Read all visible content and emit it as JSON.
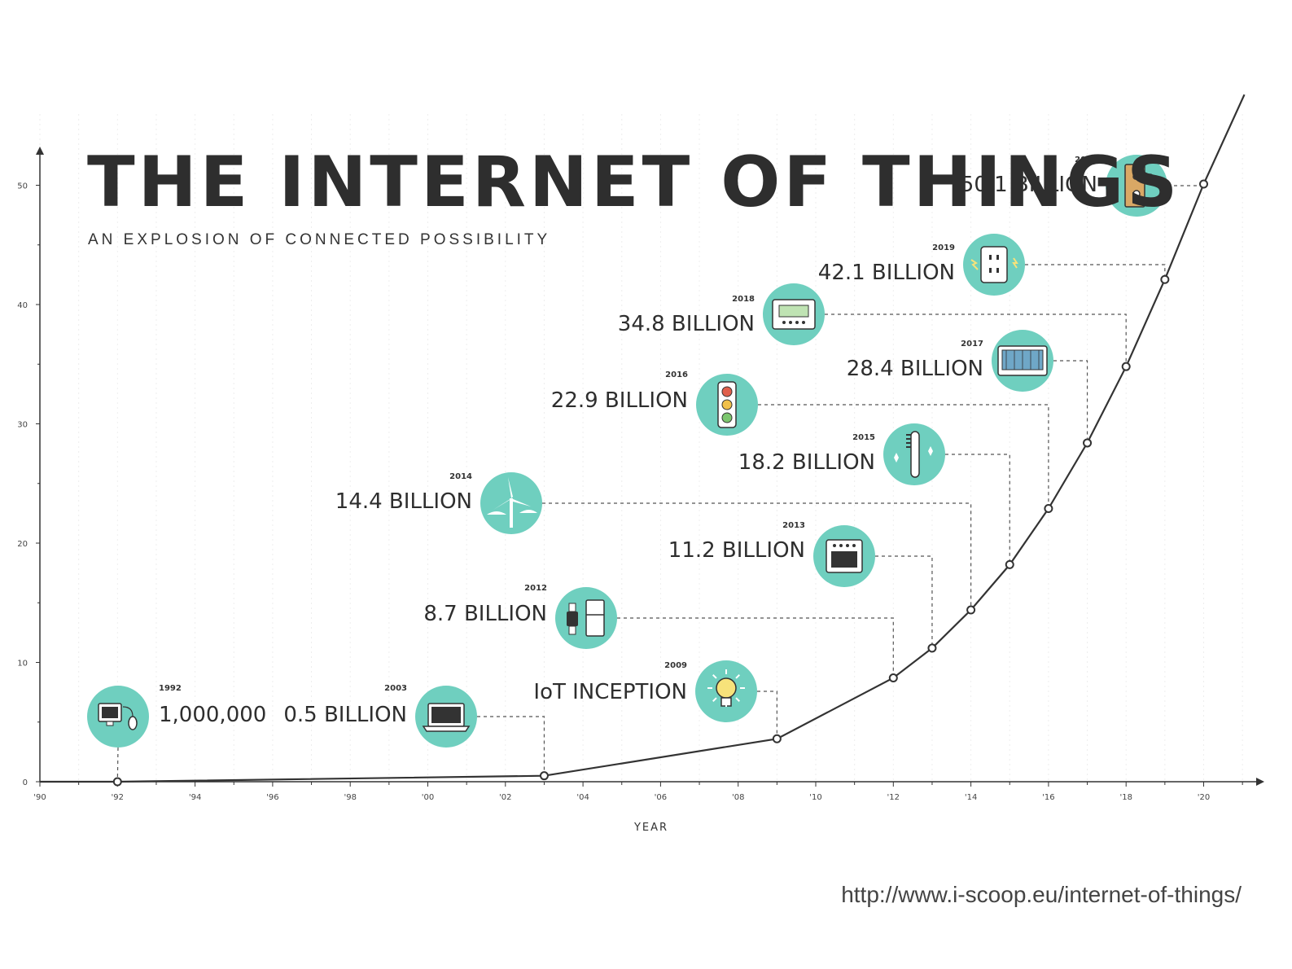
{
  "title": "THE INTERNET OF THINGS",
  "subtitle": "AN EXPLOSION OF CONNECTED POSSIBILITY",
  "source_url": "http://www.i-scoop.eu/internet-of-things/",
  "colors": {
    "accent": "#6fcfbf",
    "line": "#333333",
    "text": "#2e2e2e"
  },
  "chart_data": {
    "type": "line",
    "xlabel": "YEAR",
    "ylabel": "",
    "xlim": [
      1990,
      2021
    ],
    "ylim": [
      0,
      50
    ],
    "x_ticks": [
      "'90",
      "'92",
      "'94",
      "'96",
      "'98",
      "'00",
      "'02",
      "'04",
      "'06",
      "'08",
      "'10",
      "'12",
      "'14",
      "'16",
      "'18",
      "'20"
    ],
    "y_ticks": [
      0,
      10,
      20,
      30,
      40,
      50
    ],
    "series": [
      {
        "points": [
          {
            "x": 1992,
            "y": 0.001
          },
          {
            "x": 2003,
            "y": 0.5
          },
          {
            "x": 2009,
            "y": 3.6
          },
          {
            "x": 2012,
            "y": 8.7
          },
          {
            "x": 2013,
            "y": 11.2
          },
          {
            "x": 2014,
            "y": 14.4
          },
          {
            "x": 2015,
            "y": 18.2
          },
          {
            "x": 2016,
            "y": 22.9
          },
          {
            "x": 2017,
            "y": 28.4
          },
          {
            "x": 2018,
            "y": 34.8
          },
          {
            "x": 2019,
            "y": 42.1
          },
          {
            "x": 2020,
            "y": 50.1
          }
        ]
      }
    ],
    "milestones": [
      {
        "year": "1992",
        "value": "1,000,000",
        "x": 1992,
        "icon": "computer-icon"
      },
      {
        "year": "2003",
        "value": "0.5 BILLION",
        "x": 2003,
        "icon": "laptop-icon"
      },
      {
        "year": "2009",
        "value": "IoT INCEPTION",
        "x": 2009,
        "icon": "lightbulb-icon"
      },
      {
        "year": "2012",
        "value": "8.7 BILLION",
        "x": 2012,
        "icon": "watch-fridge-icon"
      },
      {
        "year": "2013",
        "value": "11.2 BILLION",
        "x": 2013,
        "icon": "oven-icon"
      },
      {
        "year": "2014",
        "value": "14.4 BILLION",
        "x": 2014,
        "icon": "wind-turbine-icon"
      },
      {
        "year": "2015",
        "value": "18.2 BILLION",
        "x": 2015,
        "icon": "toothbrush-icon"
      },
      {
        "year": "2016",
        "value": "22.9 BILLION",
        "x": 2016,
        "icon": "traffic-light-icon"
      },
      {
        "year": "2017",
        "value": "28.4 BILLION",
        "x": 2017,
        "icon": "dashboard-icon"
      },
      {
        "year": "2018",
        "value": "34.8 BILLION",
        "x": 2018,
        "icon": "thermostat-icon"
      },
      {
        "year": "2019",
        "value": "42.1 BILLION",
        "x": 2019,
        "icon": "power-outlet-icon"
      },
      {
        "year": "2020",
        "value": "50.1 BILLION",
        "x": 2020,
        "icon": "door-handle-icon"
      }
    ]
  }
}
